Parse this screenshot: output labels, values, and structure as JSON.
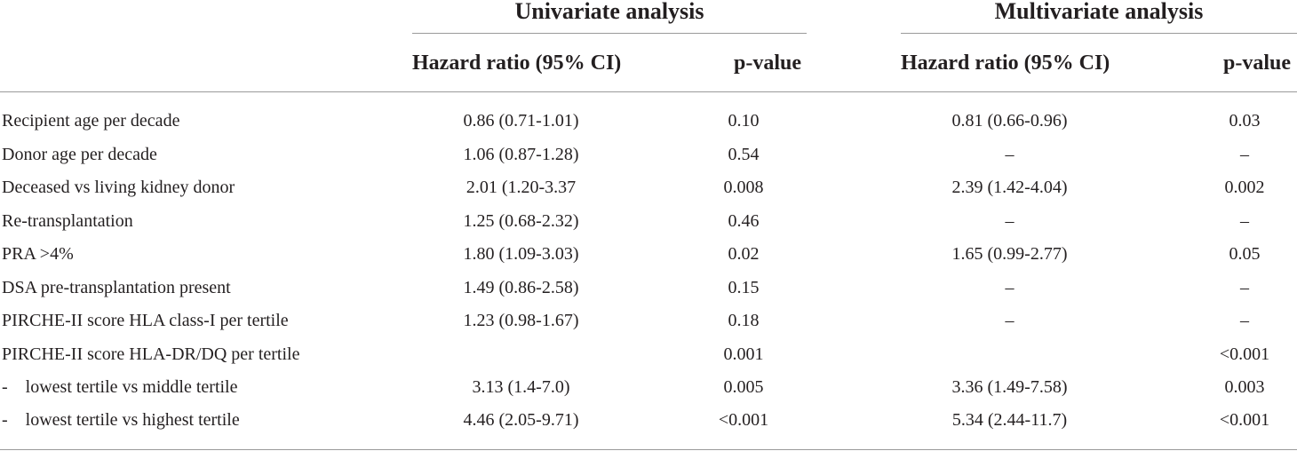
{
  "headers": {
    "univariate_title": "Univariate analysis",
    "multivariate_title": "Multivariate analysis",
    "univariate_hr": "Hazard ratio (95% CI)",
    "univariate_p": "p-value",
    "multivariate_hr": "Hazard ratio (95% CI)",
    "multivariate_p": "p-value"
  },
  "rows": [
    {
      "label": "Recipient age per decade",
      "u_hr": "0.86 (0.71-1.01)",
      "u_p": "0.10",
      "m_hr": "0.81 (0.66-0.96)",
      "m_p": "0.03"
    },
    {
      "label": "Donor age per decade",
      "u_hr": "1.06 (0.87-1.28)",
      "u_p": "0.54",
      "m_hr": "–",
      "m_p": "–"
    },
    {
      "label": "Deceased vs living kidney donor",
      "u_hr": "2.01 (1.20-3.37",
      "u_p": "0.008",
      "m_hr": "2.39 (1.42-4.04)",
      "m_p": "0.002"
    },
    {
      "label": "Re-transplantation",
      "u_hr": "1.25 (0.68-2.32)",
      "u_p": "0.46",
      "m_hr": "–",
      "m_p": "–"
    },
    {
      "label": "PRA >4%",
      "u_hr": "1.80 (1.09-3.03)",
      "u_p": "0.02",
      "m_hr": "1.65 (0.99-2.77)",
      "m_p": "0.05"
    },
    {
      "label": "DSA pre-transplantation present",
      "u_hr": "1.49 (0.86-2.58)",
      "u_p": "0.15",
      "m_hr": "–",
      "m_p": "–"
    },
    {
      "label": "PIRCHE-II score HLA class-I per tertile",
      "u_hr": "1.23 (0.98-1.67)",
      "u_p": "0.18",
      "m_hr": "–",
      "m_p": "–"
    },
    {
      "label": "PIRCHE-II score HLA-DR/DQ per tertile",
      "u_hr": "",
      "u_p": "0.001",
      "m_hr": "",
      "m_p": "<0.001"
    },
    {
      "label": "-    lowest tertile vs middle tertile",
      "u_hr": "3.13 (1.4-7.0)",
      "u_p": "0.005",
      "m_hr": "3.36 (1.49-7.58)",
      "m_p": "0.003"
    },
    {
      "label": "-    lowest tertile vs highest tertile",
      "u_hr": "4.46 (2.05-9.71)",
      "u_p": "<0.001",
      "m_hr": "5.34 (2.44-11.7)",
      "m_p": "<0.001"
    }
  ]
}
